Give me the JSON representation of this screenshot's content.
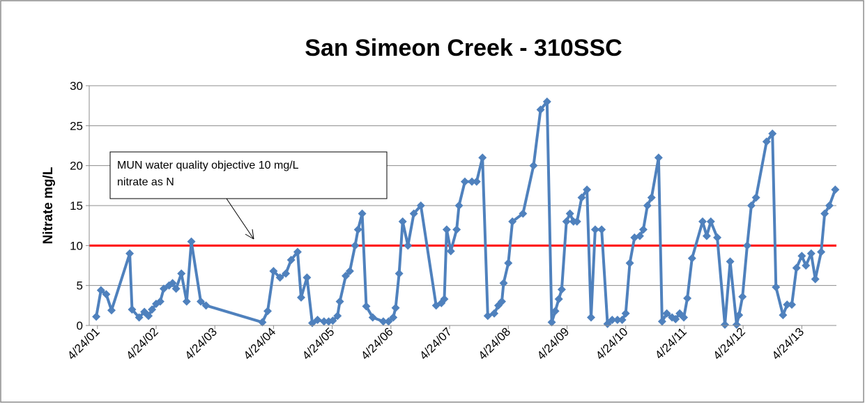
{
  "chart_data": {
    "type": "line",
    "title": "San Simeon Creek - 310SSC",
    "y_label": "Nitrate mg/L",
    "annotation": [
      "MUN water quality objective 10 mg/L",
      "nitrate as N"
    ],
    "reference_line": {
      "value": 10,
      "color": "#ff0000"
    },
    "xlim": [
      2001.17,
      2013.9
    ],
    "xticks": [
      {
        "value": 2001.31,
        "label": "4/24/01"
      },
      {
        "value": 2002.31,
        "label": "4/24/02"
      },
      {
        "value": 2003.31,
        "label": "4/24/03"
      },
      {
        "value": 2004.31,
        "label": "4/24/04"
      },
      {
        "value": 2005.31,
        "label": "4/24/05"
      },
      {
        "value": 2006.31,
        "label": "4/24/06"
      },
      {
        "value": 2007.31,
        "label": "4/24/07"
      },
      {
        "value": 2008.31,
        "label": "4/24/08"
      },
      {
        "value": 2009.31,
        "label": "4/24/09"
      },
      {
        "value": 2010.31,
        "label": "4/24/10"
      },
      {
        "value": 2011.31,
        "label": "4/24/11"
      },
      {
        "value": 2012.31,
        "label": "4/24/12"
      },
      {
        "value": 2013.31,
        "label": "4/24/13"
      }
    ],
    "ylim": [
      0,
      30
    ],
    "yticks": [
      0,
      5,
      10,
      15,
      20,
      25,
      30
    ],
    "grid": true,
    "series": [
      {
        "color": "#4f81bd",
        "x": [
          2001.29,
          2001.37,
          2001.46,
          2001.55,
          2001.86,
          2001.9,
          2002.02,
          2002.11,
          2002.18,
          2002.24,
          2002.31,
          2002.38,
          2002.44,
          2002.53,
          2002.59,
          2002.65,
          2002.74,
          2002.83,
          2002.91,
          2003.07,
          2003.16,
          2004.12,
          2004.21,
          2004.31,
          2004.42,
          2004.52,
          2004.61,
          2004.72,
          2004.78,
          2004.88,
          2004.97,
          2005.06,
          2005.17,
          2005.25,
          2005.32,
          2005.4,
          2005.44,
          2005.54,
          2005.61,
          2005.7,
          2005.75,
          2005.82,
          2005.89,
          2006.0,
          2006.18,
          2006.27,
          2006.35,
          2006.39,
          2006.45,
          2006.51,
          2006.6,
          2006.7,
          2006.82,
          2007.08,
          2007.17,
          2007.22,
          2007.26,
          2007.33,
          2007.43,
          2007.47,
          2007.57,
          2007.69,
          2007.77,
          2007.87,
          2007.96,
          2008.07,
          2008.14,
          2008.2,
          2008.23,
          2008.31,
          2008.38,
          2008.56,
          2008.74,
          2008.86,
          2008.97,
          2009.05,
          2009.11,
          2009.17,
          2009.22,
          2009.3,
          2009.36,
          2009.42,
          2009.48,
          2009.56,
          2009.65,
          2009.72,
          2009.79,
          2009.9,
          2010.0,
          2010.08,
          2010.17,
          2010.25,
          2010.31,
          2010.38,
          2010.46,
          2010.55,
          2010.61,
          2010.68,
          2010.75,
          2010.87,
          2010.93,
          2011.01,
          2011.1,
          2011.16,
          2011.23,
          2011.3,
          2011.36,
          2011.44,
          2011.62,
          2011.69,
          2011.76,
          2011.87,
          2012.0,
          2012.09,
          2012.2,
          2012.24,
          2012.3,
          2012.38,
          2012.45,
          2012.53,
          2012.71,
          2012.81,
          2012.87,
          2012.99,
          2013.06,
          2013.14,
          2013.22,
          2013.31,
          2013.38,
          2013.47,
          2013.54,
          2013.64,
          2013.7,
          2013.78,
          2013.88
        ],
        "values": [
          1.1,
          4.4,
          3.9,
          1.9,
          9,
          2,
          1,
          1.7,
          1.2,
          2,
          2.7,
          3,
          4.6,
          5,
          5.3,
          4.6,
          6.5,
          3,
          10.5,
          3,
          2.5,
          0.4,
          1.8,
          6.8,
          6,
          6.5,
          8.2,
          9.2,
          3.5,
          6,
          0.3,
          0.7,
          0.5,
          0.5,
          0.6,
          1.2,
          3,
          6.2,
          6.8,
          10,
          12,
          14,
          2.4,
          1,
          0.5,
          0.5,
          1,
          2.2,
          6.5,
          13,
          10,
          14,
          15,
          2.5,
          2.8,
          3.3,
          12,
          9.3,
          12,
          15,
          18,
          18,
          18,
          21,
          1.2,
          1.5,
          2.5,
          3,
          5.3,
          7.8,
          13,
          14,
          20,
          27,
          28,
          0.4,
          1.8,
          3.3,
          4.5,
          13,
          14,
          13,
          13,
          16,
          17,
          1,
          12,
          12,
          0.2,
          0.7,
          0.7,
          0.7,
          1.5,
          7.8,
          11,
          11.2,
          12,
          15,
          16,
          21,
          0.5,
          1.5,
          1,
          0.8,
          1.5,
          1,
          3.4,
          8.4,
          13,
          11.2,
          13,
          11,
          0.1,
          8,
          0.1,
          1.3,
          3.6,
          10,
          15,
          16,
          23,
          24,
          4.8,
          1.3,
          2.6,
          2.6,
          7.2,
          8.7,
          7.5,
          9,
          5.8,
          9.2,
          14,
          15,
          17
        ]
      }
    ]
  }
}
